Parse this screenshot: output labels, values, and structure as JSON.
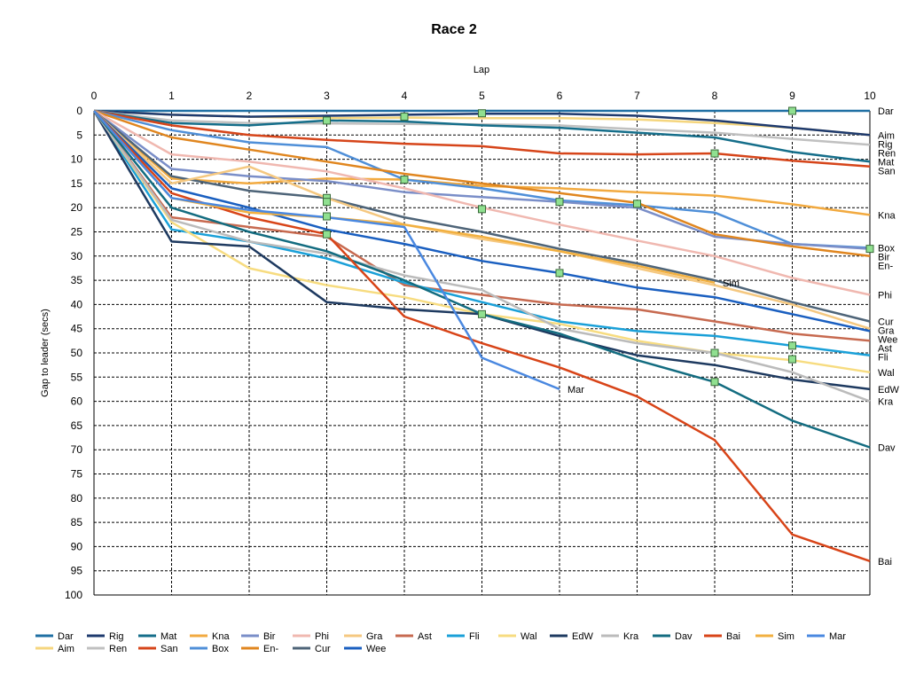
{
  "chart_data": {
    "type": "line",
    "title": "Race 2",
    "xlabel": "Lap",
    "ylabel": "Gap to leader (secs)",
    "xlim": [
      0,
      10
    ],
    "ylim": [
      0,
      100
    ],
    "y_inverted": true,
    "x_axis_position": "top",
    "grid": true,
    "legend_position": "bottom",
    "x_ticks": [
      0,
      1,
      2,
      3,
      4,
      5,
      6,
      7,
      8,
      9,
      10
    ],
    "y_ticks": [
      0,
      5,
      10,
      15,
      20,
      25,
      30,
      35,
      40,
      45,
      50,
      55,
      60,
      65,
      70,
      75,
      80,
      85,
      90,
      95,
      100
    ],
    "series": [
      {
        "name": "Dar",
        "color": "#1f6fa3",
        "values": [
          [
            0,
            0
          ],
          [
            1,
            0
          ],
          [
            2,
            0
          ],
          [
            3,
            0
          ],
          [
            4,
            0
          ],
          [
            5,
            0
          ],
          [
            6,
            0
          ],
          [
            7,
            0
          ],
          [
            8,
            0
          ],
          [
            9,
            0
          ],
          [
            10,
            0
          ]
        ],
        "end_label": "Dar"
      },
      {
        "name": "Aim",
        "color": "#f5d67e",
        "values": [
          [
            0,
            0
          ],
          [
            1,
            0.8
          ],
          [
            2,
            1.2
          ],
          [
            3,
            1.5
          ],
          [
            4,
            1.4
          ],
          [
            5,
            1.5
          ],
          [
            6,
            1.5
          ],
          [
            7,
            1.8
          ],
          [
            8,
            2.5
          ],
          [
            9,
            3.5
          ],
          [
            10,
            5
          ]
        ],
        "end_label": "Aim"
      },
      {
        "name": "Rig",
        "color": "#1e3a6e",
        "values": [
          [
            0,
            0
          ],
          [
            1,
            0.8
          ],
          [
            2,
            1.2
          ],
          [
            3,
            1
          ],
          [
            4,
            0.8
          ],
          [
            5,
            0.6
          ],
          [
            6,
            0.6
          ],
          [
            7,
            1
          ],
          [
            8,
            2
          ],
          [
            9,
            3.5
          ],
          [
            10,
            5
          ]
        ],
        "end_label": "Rig"
      },
      {
        "name": "Ren",
        "color": "#c0c0c0",
        "values": [
          [
            0,
            0
          ],
          [
            1,
            2
          ],
          [
            2,
            2.5
          ],
          [
            3,
            2.6
          ],
          [
            4,
            2.7
          ],
          [
            5,
            2.8
          ],
          [
            6,
            3
          ],
          [
            7,
            3.8
          ],
          [
            8,
            4.5
          ],
          [
            9,
            5.8
          ],
          [
            10,
            7
          ]
        ],
        "end_label": "Ren"
      },
      {
        "name": "Mat",
        "color": "#156e8a",
        "values": [
          [
            0,
            0
          ],
          [
            1,
            2.5
          ],
          [
            2,
            3
          ],
          [
            3,
            2
          ],
          [
            4,
            2.2
          ],
          [
            5,
            3
          ],
          [
            6,
            3.5
          ],
          [
            7,
            4.5
          ],
          [
            8,
            5.5
          ],
          [
            9,
            8.5
          ],
          [
            10,
            10.5
          ]
        ],
        "end_label": "Mat"
      },
      {
        "name": "San",
        "color": "#d6451a",
        "values": [
          [
            0,
            0
          ],
          [
            1,
            3
          ],
          [
            2,
            5
          ],
          [
            3,
            6
          ],
          [
            4,
            6.8
          ],
          [
            5,
            7.3
          ],
          [
            6,
            8.8
          ],
          [
            7,
            9
          ],
          [
            8,
            8.8
          ],
          [
            9,
            10.3
          ],
          [
            10,
            11.5
          ]
        ],
        "end_label": "San"
      },
      {
        "name": "Kna",
        "color": "#f2aa40",
        "values": [
          [
            0,
            0
          ],
          [
            1,
            14
          ],
          [
            2,
            15
          ],
          [
            3,
            14
          ],
          [
            4,
            14.2
          ],
          [
            5,
            15.5
          ],
          [
            6,
            16
          ],
          [
            7,
            16.8
          ],
          [
            8,
            17.5
          ],
          [
            9,
            19.3
          ],
          [
            10,
            21.5
          ]
        ],
        "end_label": "Kna"
      },
      {
        "name": "Box",
        "color": "#4f8fd8",
        "values": [
          [
            0,
            0
          ],
          [
            1,
            4
          ],
          [
            2,
            6.5
          ],
          [
            3,
            7.5
          ],
          [
            4,
            14.2
          ],
          [
            5,
            16
          ],
          [
            6,
            18.5
          ],
          [
            7,
            19.5
          ],
          [
            8,
            21
          ],
          [
            9,
            27.5
          ],
          [
            10,
            28.3
          ]
        ],
        "end_label": "Box"
      },
      {
        "name": "Bir",
        "color": "#7a8ec8",
        "values": [
          [
            0,
            0
          ],
          [
            1,
            12
          ],
          [
            2,
            13.5
          ],
          [
            3,
            14.5
          ],
          [
            4,
            16.8
          ],
          [
            5,
            17.8
          ],
          [
            6,
            18.8
          ],
          [
            7,
            20
          ],
          [
            8,
            26
          ],
          [
            9,
            27.5
          ],
          [
            10,
            28.5
          ]
        ],
        "end_label": "Bir"
      },
      {
        "name": "En-",
        "color": "#e0861f",
        "values": [
          [
            0,
            0
          ],
          [
            1,
            5.5
          ],
          [
            2,
            8
          ],
          [
            3,
            10.5
          ],
          [
            4,
            13
          ],
          [
            5,
            15
          ],
          [
            6,
            17
          ],
          [
            7,
            19
          ],
          [
            8,
            25.5
          ],
          [
            9,
            28
          ],
          [
            10,
            30
          ]
        ],
        "end_label": "En-"
      },
      {
        "name": "Phi",
        "color": "#f0b8b0",
        "values": [
          [
            0,
            0
          ],
          [
            1,
            9
          ],
          [
            2,
            10.5
          ],
          [
            3,
            12.5
          ],
          [
            4,
            16
          ],
          [
            5,
            20
          ],
          [
            6,
            23.5
          ],
          [
            7,
            26.8
          ],
          [
            8,
            30
          ],
          [
            9,
            34.5
          ],
          [
            10,
            38
          ]
        ],
        "end_label": "Phi"
      },
      {
        "name": "Cur",
        "color": "#4e6478",
        "values": [
          [
            0,
            0
          ],
          [
            1,
            13.5
          ],
          [
            2,
            16.5
          ],
          [
            3,
            18
          ],
          [
            4,
            22
          ],
          [
            5,
            25
          ],
          [
            6,
            28.5
          ],
          [
            7,
            31.5
          ],
          [
            8,
            35
          ],
          [
            9,
            39.5
          ],
          [
            10,
            43.5
          ]
        ],
        "end_label": "Cur"
      },
      {
        "name": "Gra",
        "color": "#f5c880",
        "values": [
          [
            0,
            0
          ],
          [
            1,
            15
          ],
          [
            2,
            11.5
          ],
          [
            3,
            18
          ],
          [
            4,
            23.5
          ],
          [
            5,
            26.5
          ],
          [
            6,
            29
          ],
          [
            7,
            32.5
          ],
          [
            8,
            36
          ],
          [
            9,
            40
          ],
          [
            10,
            45
          ]
        ],
        "end_label": "Gra"
      },
      {
        "name": "Wee",
        "color": "#1a5fc0",
        "values": [
          [
            0,
            0
          ],
          [
            1,
            16
          ],
          [
            2,
            20
          ],
          [
            3,
            24.5
          ],
          [
            4,
            27.5
          ],
          [
            5,
            31
          ],
          [
            6,
            33.5
          ],
          [
            7,
            36.5
          ],
          [
            8,
            38.5
          ],
          [
            9,
            42
          ],
          [
            10,
            45.5
          ]
        ],
        "end_label": "Wee"
      },
      {
        "name": "Ast",
        "color": "#c76a50",
        "values": [
          [
            0,
            0
          ],
          [
            1,
            22
          ],
          [
            2,
            24
          ],
          [
            3,
            26
          ],
          [
            4,
            36
          ],
          [
            5,
            38
          ],
          [
            6,
            40
          ],
          [
            7,
            41
          ],
          [
            8,
            43.5
          ],
          [
            9,
            46
          ],
          [
            10,
            47.5
          ]
        ],
        "end_label": "Ast"
      },
      {
        "name": "Fli",
        "color": "#1aa0d8",
        "values": [
          [
            0,
            0
          ],
          [
            1,
            24.5
          ],
          [
            2,
            27
          ],
          [
            3,
            30.5
          ],
          [
            4,
            35.5
          ],
          [
            5,
            39.5
          ],
          [
            6,
            43.5
          ],
          [
            7,
            45.5
          ],
          [
            8,
            46.5
          ],
          [
            9,
            48.5
          ],
          [
            10,
            50.5
          ]
        ],
        "end_label": "Fli"
      },
      {
        "name": "Wal",
        "color": "#f7dc80",
        "values": [
          [
            0,
            0
          ],
          [
            1,
            23
          ],
          [
            2,
            32.5
          ],
          [
            3,
            36
          ],
          [
            4,
            38.5
          ],
          [
            5,
            42
          ],
          [
            6,
            44
          ],
          [
            7,
            47.5
          ],
          [
            8,
            50
          ],
          [
            9,
            51.5
          ],
          [
            10,
            54
          ]
        ],
        "end_label": "Wal"
      },
      {
        "name": "EdW",
        "color": "#1e3a60",
        "values": [
          [
            0,
            0
          ],
          [
            1,
            27
          ],
          [
            2,
            28
          ],
          [
            3,
            39.5
          ],
          [
            4,
            41
          ],
          [
            5,
            42
          ],
          [
            6,
            46.5
          ],
          [
            7,
            50.5
          ],
          [
            8,
            52.5
          ],
          [
            9,
            55.5
          ],
          [
            10,
            57.5
          ]
        ],
        "end_label": "EdW"
      },
      {
        "name": "Kra",
        "color": "#bbbbbb",
        "values": [
          [
            0,
            0
          ],
          [
            1,
            22.5
          ],
          [
            2,
            27
          ],
          [
            3,
            29.5
          ],
          [
            4,
            34
          ],
          [
            5,
            37
          ],
          [
            6,
            45
          ],
          [
            7,
            48
          ],
          [
            8,
            50
          ],
          [
            9,
            54
          ],
          [
            10,
            60
          ]
        ],
        "end_label": "Kra"
      },
      {
        "name": "Dav",
        "color": "#136c80",
        "values": [
          [
            0,
            0
          ],
          [
            1,
            20
          ],
          [
            2,
            25
          ],
          [
            3,
            29
          ],
          [
            4,
            35
          ],
          [
            5,
            42
          ],
          [
            6,
            46
          ],
          [
            7,
            51.5
          ],
          [
            8,
            56
          ],
          [
            9,
            64
          ],
          [
            10,
            69.5
          ]
        ],
        "end_label": "Dav"
      },
      {
        "name": "Bai",
        "color": "#d84418",
        "values": [
          [
            0,
            0
          ],
          [
            1,
            17
          ],
          [
            2,
            22
          ],
          [
            3,
            25.5
          ],
          [
            4,
            42.5
          ],
          [
            5,
            48
          ],
          [
            6,
            53
          ],
          [
            7,
            59
          ],
          [
            8,
            68
          ],
          [
            9,
            87.5
          ],
          [
            10,
            93
          ]
        ],
        "end_label": "Bai"
      },
      {
        "name": "Sim",
        "color": "#f2b040",
        "values": [
          [
            0,
            0
          ],
          [
            1,
            18
          ],
          [
            2,
            21
          ],
          [
            3,
            22
          ],
          [
            4,
            23.5
          ],
          [
            5,
            26
          ],
          [
            6,
            29
          ],
          [
            7,
            32
          ],
          [
            8,
            35.5
          ]
        ],
        "end_label": "Sim"
      },
      {
        "name": "Mar",
        "color": "#4a88e0",
        "values": [
          [
            0,
            0
          ],
          [
            1,
            18
          ],
          [
            2,
            20.5
          ],
          [
            3,
            22
          ],
          [
            4,
            24
          ],
          [
            5,
            51
          ],
          [
            6,
            57.5
          ]
        ],
        "end_label": "Mar"
      }
    ],
    "markers": [
      {
        "x": 3,
        "y": 2
      },
      {
        "x": 4,
        "y": 1.2
      },
      {
        "x": 5,
        "y": 0.5
      },
      {
        "x": 9,
        "y": 0
      },
      {
        "x": 8,
        "y": 8.8
      },
      {
        "x": 4,
        "y": 14.2
      },
      {
        "x": 3,
        "y": 18
      },
      {
        "x": 3,
        "y": 18.8
      },
      {
        "x": 6,
        "y": 18.8
      },
      {
        "x": 7,
        "y": 19.2
      },
      {
        "x": 5,
        "y": 20.3
      },
      {
        "x": 3,
        "y": 21.8
      },
      {
        "x": 3,
        "y": 25.5
      },
      {
        "x": 10,
        "y": 28.5
      },
      {
        "x": 6,
        "y": 33.5
      },
      {
        "x": 5,
        "y": 42
      },
      {
        "x": 9,
        "y": 48.5
      },
      {
        "x": 8,
        "y": 50
      },
      {
        "x": 9,
        "y": 51.3
      },
      {
        "x": 8,
        "y": 56
      }
    ],
    "legend_order": [
      "Dar",
      "Rig",
      "Mat",
      "Kna",
      "Bir",
      "Phi",
      "Gra",
      "Ast",
      "Fli",
      "Wal",
      "EdW",
      "Kra",
      "Dav",
      "Bai",
      "Sim",
      "Mar",
      "Aim",
      "Ren",
      "San",
      "Box",
      "En-",
      "Cur",
      "Wee"
    ]
  }
}
